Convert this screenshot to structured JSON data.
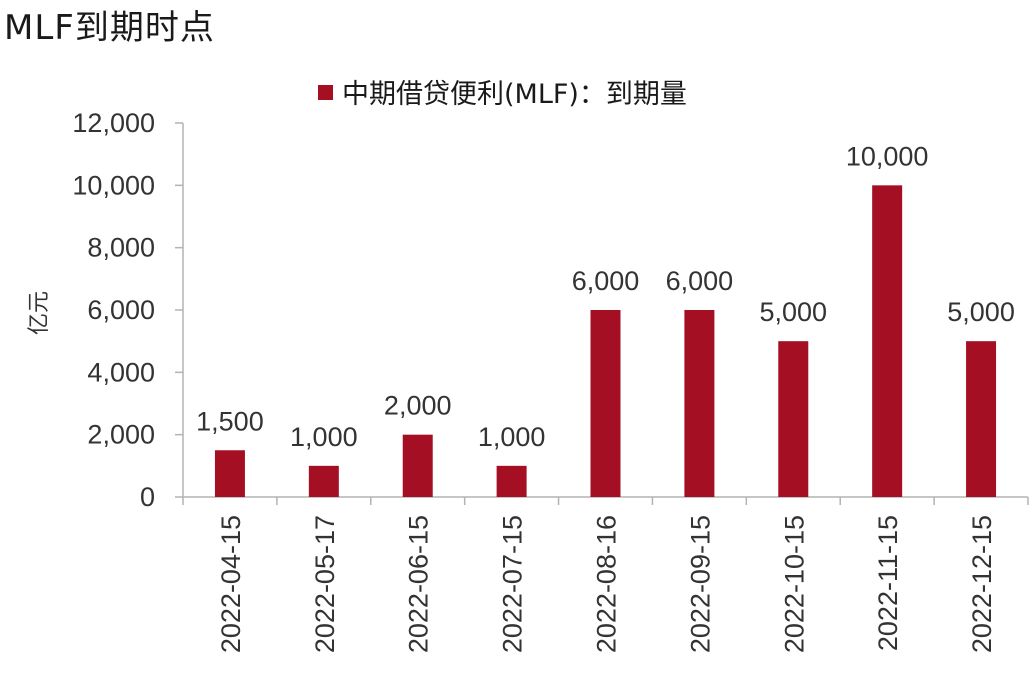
{
  "page": {
    "title": "MLF到期时点"
  },
  "chart_data": {
    "type": "bar",
    "title": "",
    "legend": {
      "position": "top",
      "entries": [
        "中期借贷便利(MLF)：到期量"
      ]
    },
    "xlabel": "",
    "ylabel": "亿元",
    "ylim": [
      0,
      12000
    ],
    "yticks": [
      0,
      2000,
      4000,
      6000,
      8000,
      10000,
      12000
    ],
    "ytick_labels": [
      "0",
      "2,000",
      "4,000",
      "6,000",
      "8,000",
      "10,000",
      "12,000"
    ],
    "grid": false,
    "categories": [
      "2022-04-15",
      "2022-05-17",
      "2022-06-15",
      "2022-07-15",
      "2022-08-16",
      "2022-09-15",
      "2022-10-15",
      "2022-11-15",
      "2022-12-15"
    ],
    "series": [
      {
        "name": "中期借贷便利(MLF)：到期量",
        "color": "#a50f24",
        "values": [
          1500,
          1000,
          2000,
          1000,
          6000,
          6000,
          5000,
          10000,
          5000
        ],
        "value_labels": [
          "1,500",
          "1,000",
          "2,000",
          "1,000",
          "6,000",
          "6,000",
          "5,000",
          "10,000",
          "5,000"
        ]
      }
    ]
  }
}
